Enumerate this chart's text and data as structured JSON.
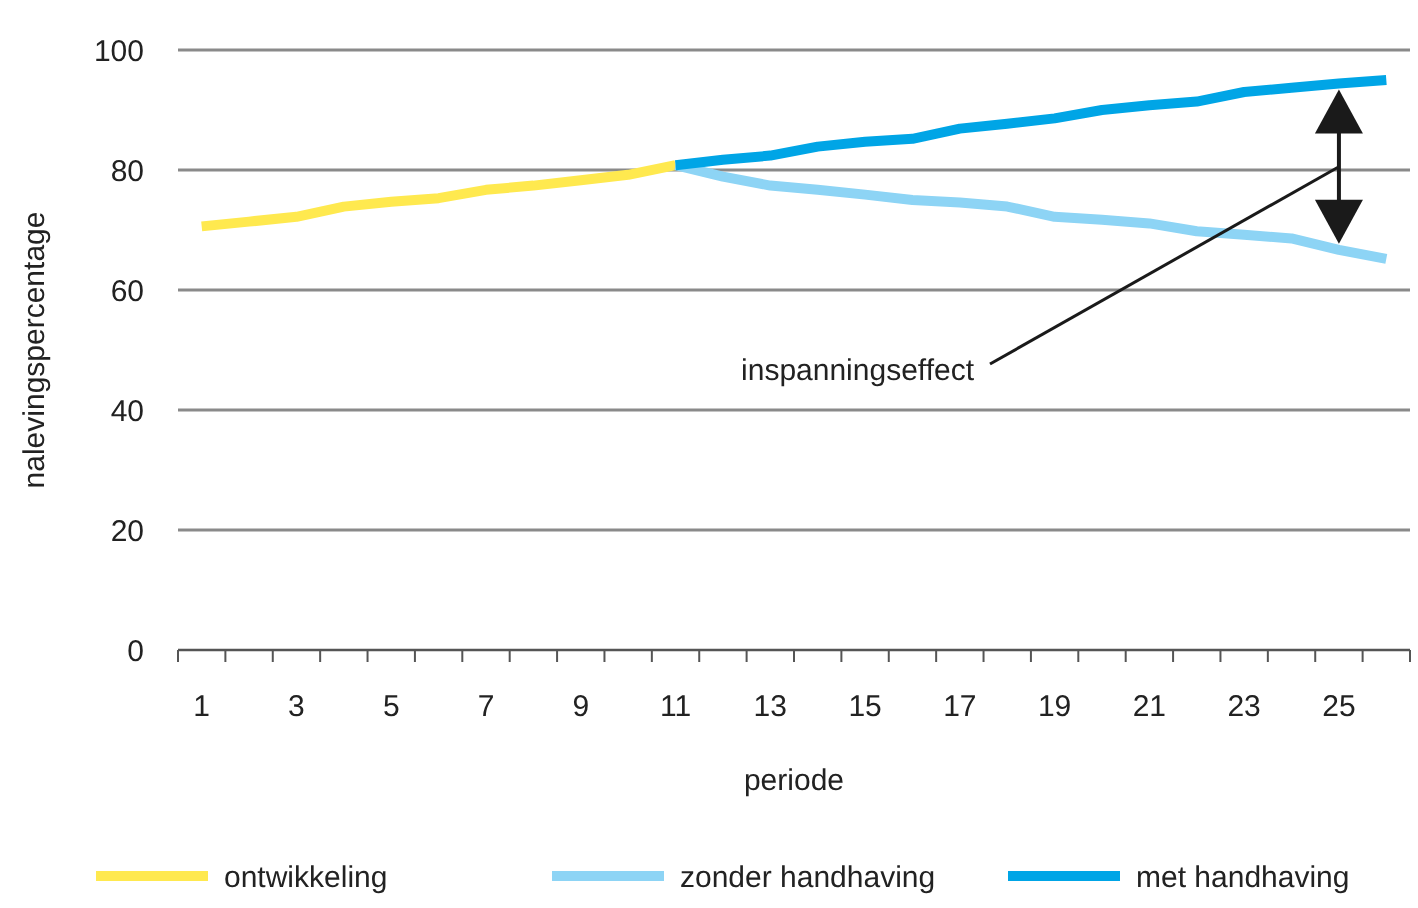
{
  "chart_data": {
    "type": "line",
    "xlabel": "periode",
    "ylabel": "nalevingspercentage",
    "x": [
      1,
      2,
      3,
      4,
      5,
      6,
      7,
      8,
      9,
      10,
      11,
      12,
      13,
      14,
      15,
      16,
      17,
      18,
      19,
      20,
      21,
      22,
      23,
      24,
      25,
      26
    ],
    "series": [
      {
        "name": "ontwikkeling",
        "color": "#ffe94f",
        "values": [
          70.6,
          71.4,
          72.2,
          73.9,
          74.7,
          75.3,
          76.7,
          77.4,
          78.3,
          79.2,
          80.8,
          null,
          null,
          null,
          null,
          null,
          null,
          null,
          null,
          null,
          null,
          null,
          null,
          null,
          null,
          null
        ]
      },
      {
        "name": "zonder handhaving",
        "color": "#8dd4f5",
        "values": [
          null,
          null,
          null,
          null,
          null,
          null,
          null,
          null,
          null,
          null,
          80.8,
          78.9,
          77.4,
          76.7,
          75.9,
          75,
          74.6,
          73.9,
          72.2,
          71.7,
          71.1,
          69.8,
          69.2,
          68.6,
          66.7,
          65.2
        ]
      },
      {
        "name": "met handhaving",
        "color": "#00a5e6",
        "values": [
          null,
          null,
          null,
          null,
          null,
          null,
          null,
          null,
          null,
          null,
          80.8,
          81.7,
          82.4,
          83.9,
          84.7,
          85.2,
          86.9,
          87.7,
          88.6,
          90,
          90.8,
          91.4,
          93,
          93.7,
          94.4,
          95
        ]
      }
    ],
    "xlim": [
      0.5,
      26.5
    ],
    "xticks": [
      {
        "value": 0.5,
        "label": null
      },
      1,
      {
        "value": 1.5,
        "label": null
      },
      {
        "value": 2.5,
        "label": null
      },
      3,
      {
        "value": 3.5,
        "label": null
      },
      {
        "value": 4.5,
        "label": null
      },
      5,
      {
        "value": 5.5,
        "label": null
      },
      {
        "value": 6.5,
        "label": null
      },
      7,
      {
        "value": 7.5,
        "label": null
      },
      {
        "value": 8.5,
        "label": null
      },
      9,
      {
        "value": 9.5,
        "label": null
      },
      {
        "value": 10.5,
        "label": null
      },
      11,
      {
        "value": 11.5,
        "label": null
      },
      {
        "value": 12.5,
        "label": null
      },
      13,
      {
        "value": 13.5,
        "label": null
      },
      {
        "value": 14.5,
        "label": null
      },
      15,
      {
        "value": 15.5,
        "label": null
      },
      {
        "value": 16.5,
        "label": null
      },
      17,
      {
        "value": 17.5,
        "label": null
      },
      {
        "value": 18.5,
        "label": null
      },
      19,
      {
        "value": 19.5,
        "label": null
      },
      {
        "value": 20.5,
        "label": null
      },
      21,
      {
        "value": 21.5,
        "label": null
      },
      {
        "value": 22.5,
        "label": null
      },
      23,
      {
        "value": 23.5,
        "label": null
      },
      {
        "value": 24.5,
        "label": null
      },
      25,
      {
        "value": 25.5,
        "label": null
      },
      {
        "value": 26.5,
        "label": null
      }
    ],
    "ylim": [
      0,
      100
    ],
    "yticks": [
      0,
      20,
      40,
      60,
      80,
      100
    ],
    "grid": "y",
    "legend": "bottom",
    "line_style": "solid",
    "marker": "none",
    "annotations": [
      "inspanningseffect"
    ]
  }
}
